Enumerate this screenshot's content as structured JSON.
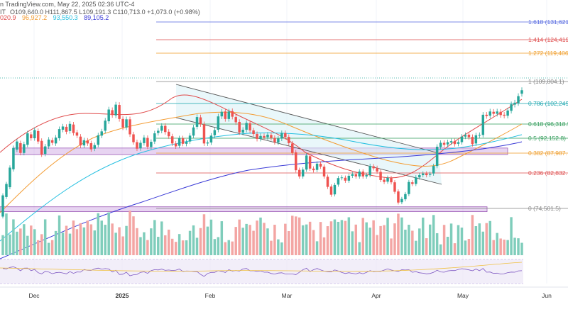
{
  "header": {
    "line1": "n TradingView.com, May 22, 2025 02:36 UTC-4",
    "ohlc": "O109,640.0 H111,867.5 L109,191.3 C110,713.0 +1,073.0 (+0.98%)",
    "ohlc_prefix": "IT",
    "ma_values": [
      {
        "text": "020.9",
        "color": "#e04a4a"
      },
      {
        "text": "96,927.2",
        "color": "#f39c33"
      },
      {
        "text": "93,550.3",
        "color": "#22bfe0"
      },
      {
        "text": "89,105.2",
        "color": "#3a3ad6"
      }
    ]
  },
  "chart_data": {
    "type": "candlestick",
    "title": "",
    "x_labels": [
      "Dec",
      "2025",
      "Feb",
      "Mar",
      "Apr",
      "May",
      "Jun"
    ],
    "price_range": [
      72000,
      140000
    ],
    "last_close": 110713.0,
    "current_price_line": 111867.5,
    "fibonacci": [
      {
        "level": "1.618",
        "price": 131621,
        "label": "1.618 (131,621",
        "color": "#5b6ee1"
      },
      {
        "level": "1.414",
        "price": 124419,
        "label": "1.414 (124,419",
        "color": "#e05555"
      },
      {
        "level": "1.272",
        "price": 119406,
        "label": "1.272 (119,406",
        "color": "#f0a030"
      },
      {
        "level": "1",
        "price": 109804.1,
        "label": "1 (109,804.1)",
        "color": "#888888"
      },
      {
        "level": "0.786",
        "price": 102249,
        "label": "0.786 (102,249",
        "color": "#20a8b0"
      },
      {
        "level": "0.618",
        "price": 96318.5,
        "label": "0.618 (96,318.5",
        "color": "#3aa060"
      },
      {
        "level": "0.5",
        "price": 92152.8,
        "label": "0.5 (92,152.8)",
        "color": "#3aa060"
      },
      {
        "level": "0.382",
        "price": 87987,
        "label": "0.382 (87,987.",
        "color": "#f0a030"
      },
      {
        "level": "0.236",
        "price": 82832,
        "label": "0.236 (82,832.",
        "color": "#e05555"
      },
      {
        "level": "0",
        "price": 74501.5,
        "label": "0 (74,501.5)",
        "color": "#888888"
      }
    ],
    "support_zones": [
      {
        "low": 91000,
        "high": 93000,
        "color": "#c9a0e0"
      },
      {
        "low": 73500,
        "high": 75000,
        "color": "#c9a0e0"
      }
    ],
    "channel": {
      "upper": [
        [
          0.312,
          107500
        ],
        [
          0.765,
          89000
        ]
      ],
      "lower": [
        [
          0.312,
          97000
        ],
        [
          0.78,
          78500
        ]
      ]
    },
    "candles": [
      [
        72000,
        78500
      ],
      [
        78000,
        82000
      ],
      [
        81000,
        87000
      ],
      [
        86500,
        93000
      ],
      [
        92500,
        95000
      ],
      [
        94500,
        91500
      ],
      [
        91500,
        94200
      ],
      [
        94000,
        97500
      ],
      [
        97200,
        96000
      ],
      [
        96000,
        98500
      ],
      [
        98200,
        95000
      ],
      [
        95200,
        91000
      ],
      [
        91200,
        93500
      ],
      [
        93500,
        95600
      ],
      [
        95400,
        94600
      ],
      [
        94400,
        96200
      ],
      [
        96000,
        98800
      ],
      [
        98600,
        99600
      ],
      [
        99500,
        98000
      ],
      [
        98200,
        100400
      ],
      [
        100200,
        97600
      ],
      [
        97800,
        96800
      ],
      [
        96500,
        93800
      ],
      [
        93800,
        95400
      ],
      [
        95300,
        94400
      ],
      [
        94500,
        92600
      ],
      [
        92800,
        93900
      ],
      [
        94000,
        96900
      ],
      [
        96800,
        98100
      ],
      [
        98300,
        101400
      ],
      [
        101200,
        104800
      ],
      [
        104600,
        103100
      ],
      [
        103000,
        106300
      ],
      [
        106200,
        101900
      ],
      [
        101900,
        99300
      ],
      [
        99300,
        101800
      ],
      [
        101800,
        97200
      ],
      [
        97200,
        94800
      ],
      [
        94800,
        92800
      ],
      [
        92900,
        94600
      ],
      [
        94500,
        96200
      ],
      [
        96100,
        93400
      ],
      [
        93300,
        94900
      ],
      [
        95000,
        97500
      ],
      [
        97600,
        98300
      ],
      [
        98300,
        99800
      ],
      [
        99800,
        97900
      ],
      [
        98000,
        96600
      ],
      [
        96600,
        94400
      ],
      [
        94400,
        93500
      ],
      [
        93700,
        96000
      ],
      [
        96000,
        94300
      ],
      [
        94300,
        94900
      ],
      [
        95000,
        96800
      ],
      [
        96800,
        99300
      ],
      [
        99500,
        102500
      ],
      [
        102400,
        100300
      ],
      [
        100300,
        94400
      ],
      [
        94400,
        94700
      ],
      [
        94700,
        96800
      ],
      [
        96900,
        98500
      ],
      [
        98600,
        102700
      ],
      [
        102700,
        104100
      ],
      [
        104200,
        101900
      ],
      [
        101900,
        104200
      ],
      [
        104300,
        102600
      ],
      [
        102500,
        100900
      ],
      [
        101000,
        97800
      ],
      [
        97700,
        98600
      ],
      [
        98600,
        100700
      ],
      [
        100600,
        98400
      ],
      [
        98400,
        97300
      ],
      [
        97300,
        95800
      ],
      [
        95800,
        96700
      ],
      [
        96700,
        96200
      ],
      [
        96300,
        97100
      ],
      [
        97000,
        96100
      ],
      [
        96100,
        94800
      ],
      [
        94700,
        95900
      ],
      [
        95900,
        97600
      ],
      [
        97600,
        96400
      ],
      [
        96400,
        94500
      ],
      [
        94400,
        91500
      ],
      [
        91700,
        86200
      ],
      [
        86300,
        84300
      ],
      [
        84300,
        86400
      ],
      [
        86400,
        90700
      ],
      [
        90500,
        86700
      ],
      [
        86700,
        86200
      ],
      [
        86300,
        88200
      ],
      [
        88200,
        87300
      ],
      [
        87300,
        84300
      ],
      [
        84200,
        81100
      ],
      [
        81200,
        78700
      ],
      [
        78800,
        81700
      ],
      [
        81800,
        83800
      ],
      [
        83800,
        84000
      ],
      [
        83900,
        83000
      ],
      [
        83000,
        84500
      ],
      [
        84500,
        85000
      ],
      [
        85000,
        84300
      ],
      [
        84300,
        85800
      ],
      [
        85800,
        84300
      ],
      [
        84300,
        84700
      ],
      [
        84700,
        87500
      ],
      [
        87400,
        86800
      ],
      [
        86900,
        85800
      ],
      [
        85700,
        83200
      ],
      [
        83300,
        82600
      ],
      [
        82700,
        83900
      ],
      [
        83800,
        82500
      ],
      [
        82500,
        79600
      ],
      [
        79700,
        76300
      ],
      [
        76400,
        77400
      ],
      [
        77300,
        78900
      ],
      [
        78900,
        82600
      ],
      [
        82500,
        82000
      ],
      [
        82000,
        84000
      ],
      [
        84000,
        84700
      ],
      [
        84700,
        85200
      ],
      [
        85200,
        84700
      ],
      [
        84800,
        85100
      ],
      [
        85200,
        87500
      ],
      [
        87500,
        93400
      ],
      [
        93300,
        94600
      ],
      [
        94600,
        94000
      ],
      [
        94100,
        94800
      ],
      [
        94700,
        95100
      ],
      [
        95100,
        94200
      ],
      [
        94300,
        94800
      ],
      [
        94800,
        96500
      ],
      [
        96500,
        97000
      ],
      [
        97100,
        96300
      ],
      [
        96400,
        94200
      ],
      [
        94400,
        96900
      ],
      [
        96900,
        97000
      ],
      [
        97000,
        103200
      ],
      [
        103200,
        102800
      ],
      [
        102900,
        104200
      ],
      [
        104100,
        103500
      ],
      [
        103500,
        104200
      ],
      [
        104100,
        103100
      ],
      [
        103200,
        102900
      ],
      [
        102900,
        104500
      ],
      [
        104400,
        106400
      ],
      [
        106300,
        106900
      ],
      [
        106800,
        108900
      ],
      [
        109640,
        110713
      ]
    ],
    "moving_averages": [
      {
        "label": "020.9",
        "color": "#e04a4a"
      },
      {
        "label": "96,927.2",
        "color": "#f39c33"
      },
      {
        "label": "93,550.3",
        "color": "#22bfe0"
      },
      {
        "label": "89,105.2",
        "color": "#3a3ad6"
      }
    ],
    "volume_panel": true,
    "rsi_panel": true
  },
  "colors": {
    "up": "#26a69a",
    "down": "#ef5350",
    "channel_fill": "#d7f0f5",
    "grid": "#f0f3fa"
  }
}
